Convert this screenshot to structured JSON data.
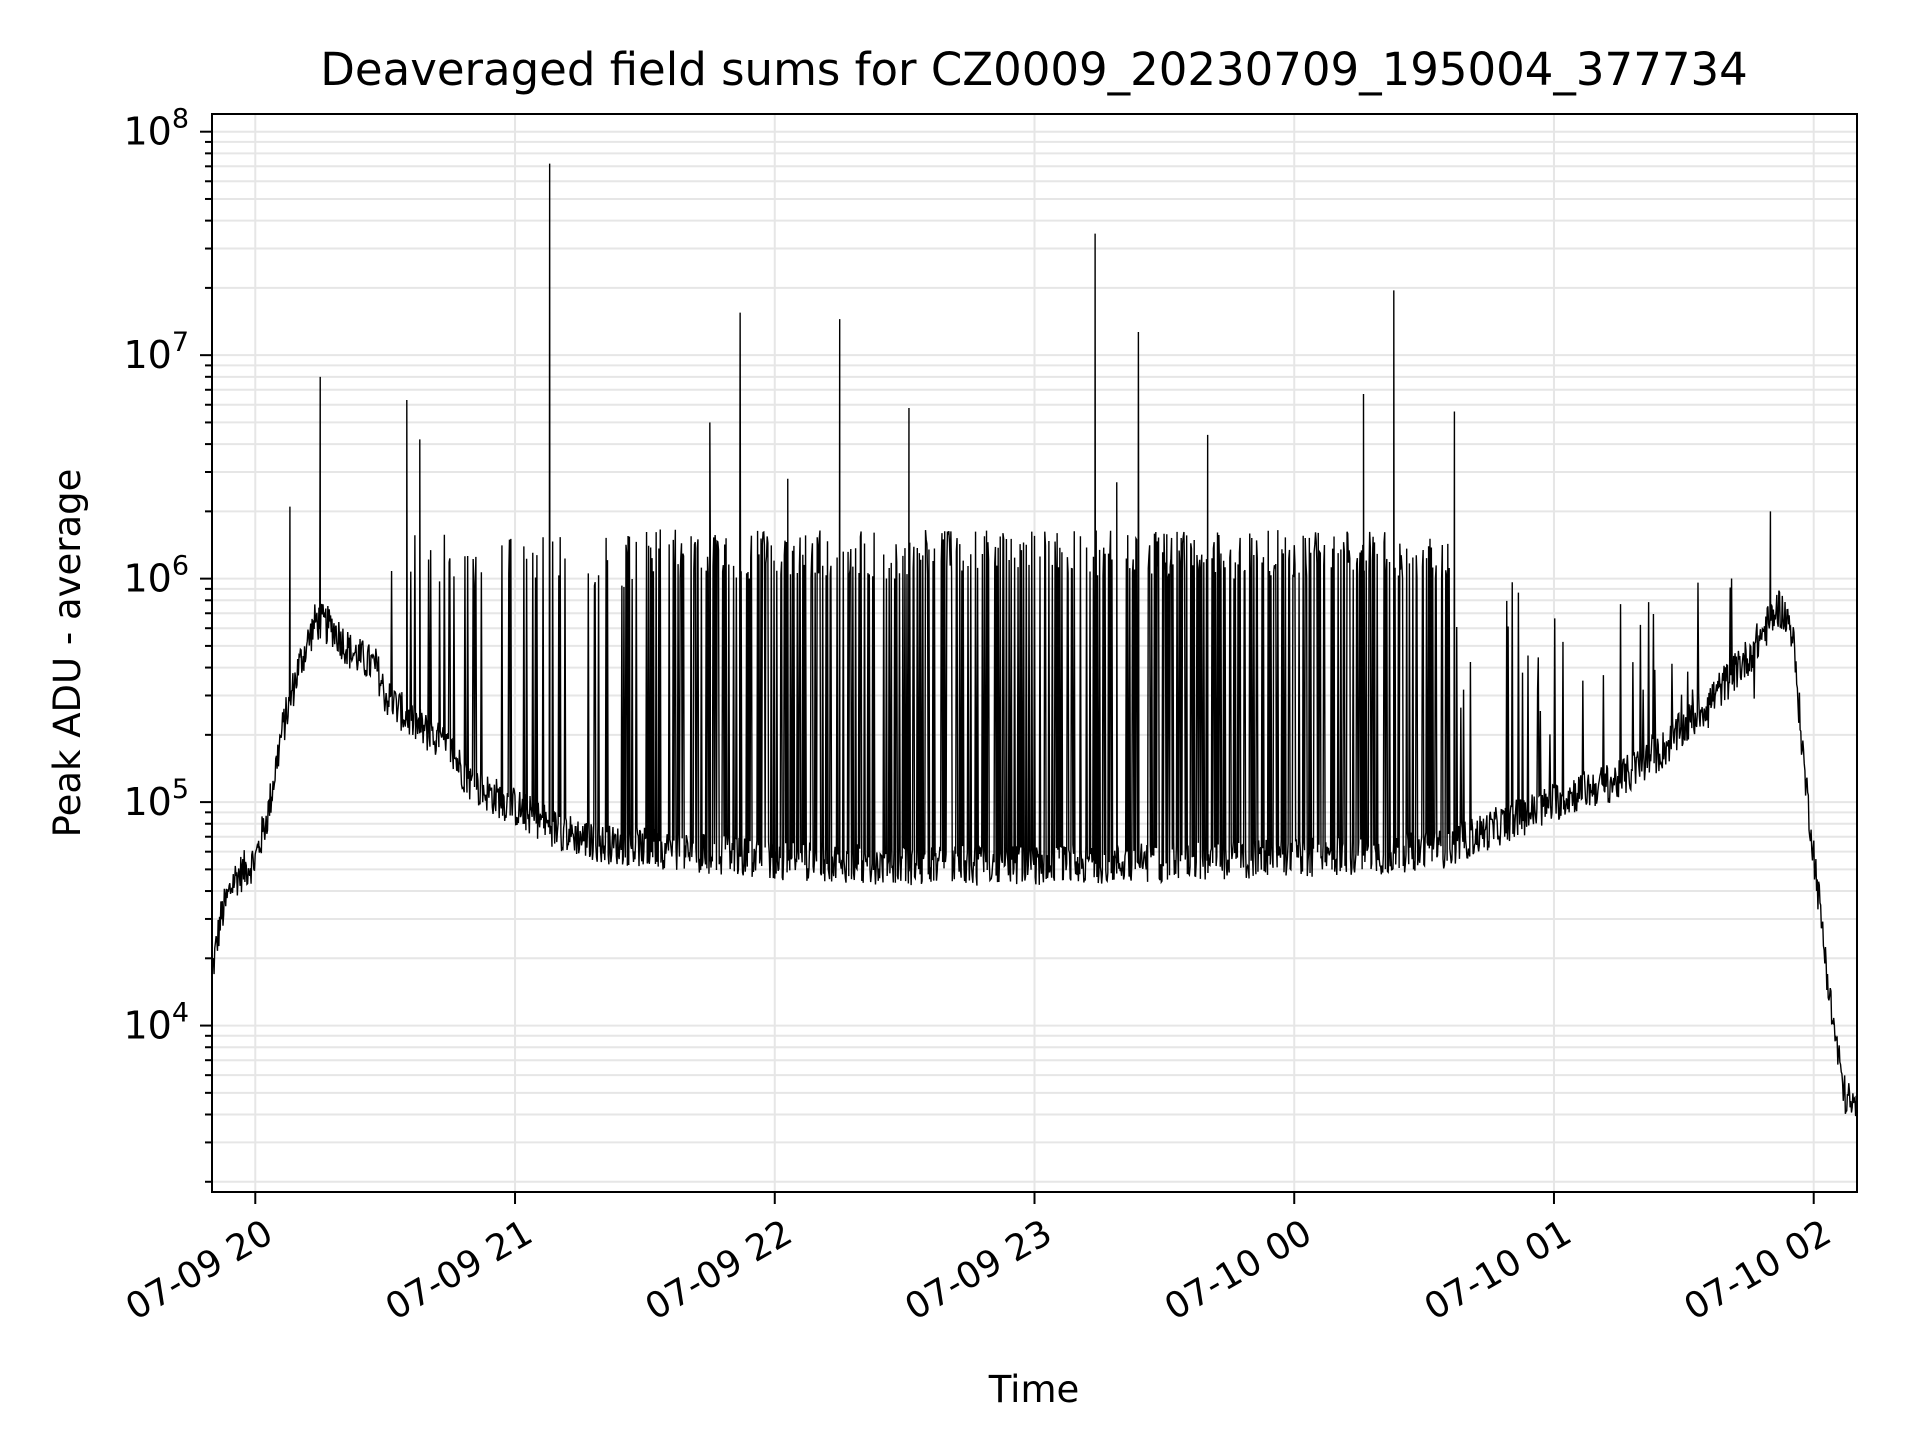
{
  "chart_data": {
    "type": "line",
    "title": "Deaveraged field sums for CZ0009_20230709_195004_377734",
    "xlabel": "Time",
    "ylabel": "Peak ADU - average",
    "y_scale": "log",
    "ylim": [
      1800,
      120000000
    ],
    "xlim": [
      "2023-07-09 19:50",
      "2023-07-10 02:10"
    ],
    "grid": true,
    "line_color": "#000000",
    "x_ticks": [
      {
        "value": "2023-07-09 20:00",
        "label": "07-09 20"
      },
      {
        "value": "2023-07-09 21:00",
        "label": "07-09 21"
      },
      {
        "value": "2023-07-09 22:00",
        "label": "07-09 22"
      },
      {
        "value": "2023-07-09 23:00",
        "label": "07-09 23"
      },
      {
        "value": "2023-07-10 00:00",
        "label": "07-10 00"
      },
      {
        "value": "2023-07-10 01:00",
        "label": "07-10 01"
      },
      {
        "value": "2023-07-10 02:00",
        "label": "07-10 02"
      }
    ],
    "y_ticks": [
      {
        "value": 10000,
        "base": "10",
        "exp": "4"
      },
      {
        "value": 100000,
        "base": "10",
        "exp": "5"
      },
      {
        "value": 1000000,
        "base": "10",
        "exp": "6"
      },
      {
        "value": 10000000,
        "base": "10",
        "exp": "7"
      },
      {
        "value": 100000000,
        "base": "10",
        "exp": "8"
      }
    ],
    "baseline": [
      {
        "x": "2023-07-09 19:50",
        "y": 17000
      },
      {
        "x": "2023-07-09 19:52",
        "y": 30000
      },
      {
        "x": "2023-07-09 19:55",
        "y": 45000
      },
      {
        "x": "2023-07-09 20:00",
        "y": 55000
      },
      {
        "x": "2023-07-09 20:03",
        "y": 90000
      },
      {
        "x": "2023-07-09 20:06",
        "y": 200000
      },
      {
        "x": "2023-07-09 20:10",
        "y": 400000
      },
      {
        "x": "2023-07-09 20:14",
        "y": 650000
      },
      {
        "x": "2023-07-09 20:18",
        "y": 600000
      },
      {
        "x": "2023-07-09 20:22",
        "y": 470000
      },
      {
        "x": "2023-07-09 20:28",
        "y": 400000
      },
      {
        "x": "2023-07-09 20:30",
        "y": 300000
      },
      {
        "x": "2023-07-09 20:35",
        "y": 240000
      },
      {
        "x": "2023-07-09 20:45",
        "y": 170000
      },
      {
        "x": "2023-07-09 20:50",
        "y": 120000
      },
      {
        "x": "2023-07-09 21:00",
        "y": 95000
      },
      {
        "x": "2023-07-09 21:10",
        "y": 75000
      },
      {
        "x": "2023-07-09 21:20",
        "y": 65000
      },
      {
        "x": "2023-07-09 21:40",
        "y": 60000
      },
      {
        "x": "2023-07-09 22:00",
        "y": 55000
      },
      {
        "x": "2023-07-09 22:30",
        "y": 52000
      },
      {
        "x": "2023-07-09 23:00",
        "y": 52000
      },
      {
        "x": "2023-07-09 23:30",
        "y": 54000
      },
      {
        "x": "2023-07-10 00:00",
        "y": 56000
      },
      {
        "x": "2023-07-10 00:20",
        "y": 58000
      },
      {
        "x": "2023-07-10 00:35",
        "y": 62000
      },
      {
        "x": "2023-07-10 00:45",
        "y": 75000
      },
      {
        "x": "2023-07-10 00:55",
        "y": 90000
      },
      {
        "x": "2023-07-10 01:05",
        "y": 110000
      },
      {
        "x": "2023-07-10 01:15",
        "y": 125000
      },
      {
        "x": "2023-07-10 01:25",
        "y": 170000
      },
      {
        "x": "2023-07-10 01:35",
        "y": 270000
      },
      {
        "x": "2023-07-10 01:45",
        "y": 450000
      },
      {
        "x": "2023-07-10 01:52",
        "y": 750000
      },
      {
        "x": "2023-07-10 01:55",
        "y": 600000
      },
      {
        "x": "2023-07-10 01:58",
        "y": 130000
      },
      {
        "x": "2023-07-10 02:01",
        "y": 40000
      },
      {
        "x": "2023-07-10 02:04",
        "y": 12000
      },
      {
        "x": "2023-07-10 02:07",
        "y": 5000
      },
      {
        "x": "2023-07-10 02:10",
        "y": 4000
      }
    ],
    "spikes": [
      {
        "x": "2023-07-09 20:08",
        "y": 2100000
      },
      {
        "x": "2023-07-09 20:15",
        "y": 8000000
      },
      {
        "x": "2023-07-09 20:35",
        "y": 6300000
      },
      {
        "x": "2023-07-09 20:38",
        "y": 4200000
      },
      {
        "x": "2023-07-09 21:08",
        "y": 72000000
      },
      {
        "x": "2023-07-09 21:45",
        "y": 5000000
      },
      {
        "x": "2023-07-09 21:52",
        "y": 15500000
      },
      {
        "x": "2023-07-09 22:03",
        "y": 2800000
      },
      {
        "x": "2023-07-09 22:15",
        "y": 14500000
      },
      {
        "x": "2023-07-09 22:31",
        "y": 5800000
      },
      {
        "x": "2023-07-09 23:14",
        "y": 35000000
      },
      {
        "x": "2023-07-09 23:24",
        "y": 12700000
      },
      {
        "x": "2023-07-09 23:19",
        "y": 2700000
      },
      {
        "x": "2023-07-09 23:40",
        "y": 4400000
      },
      {
        "x": "2023-07-10 00:16",
        "y": 6700000
      },
      {
        "x": "2023-07-10 00:23",
        "y": 19500000
      },
      {
        "x": "2023-07-10 00:37",
        "y": 5600000
      },
      {
        "x": "2023-07-10 01:50",
        "y": 2000000
      }
    ]
  }
}
